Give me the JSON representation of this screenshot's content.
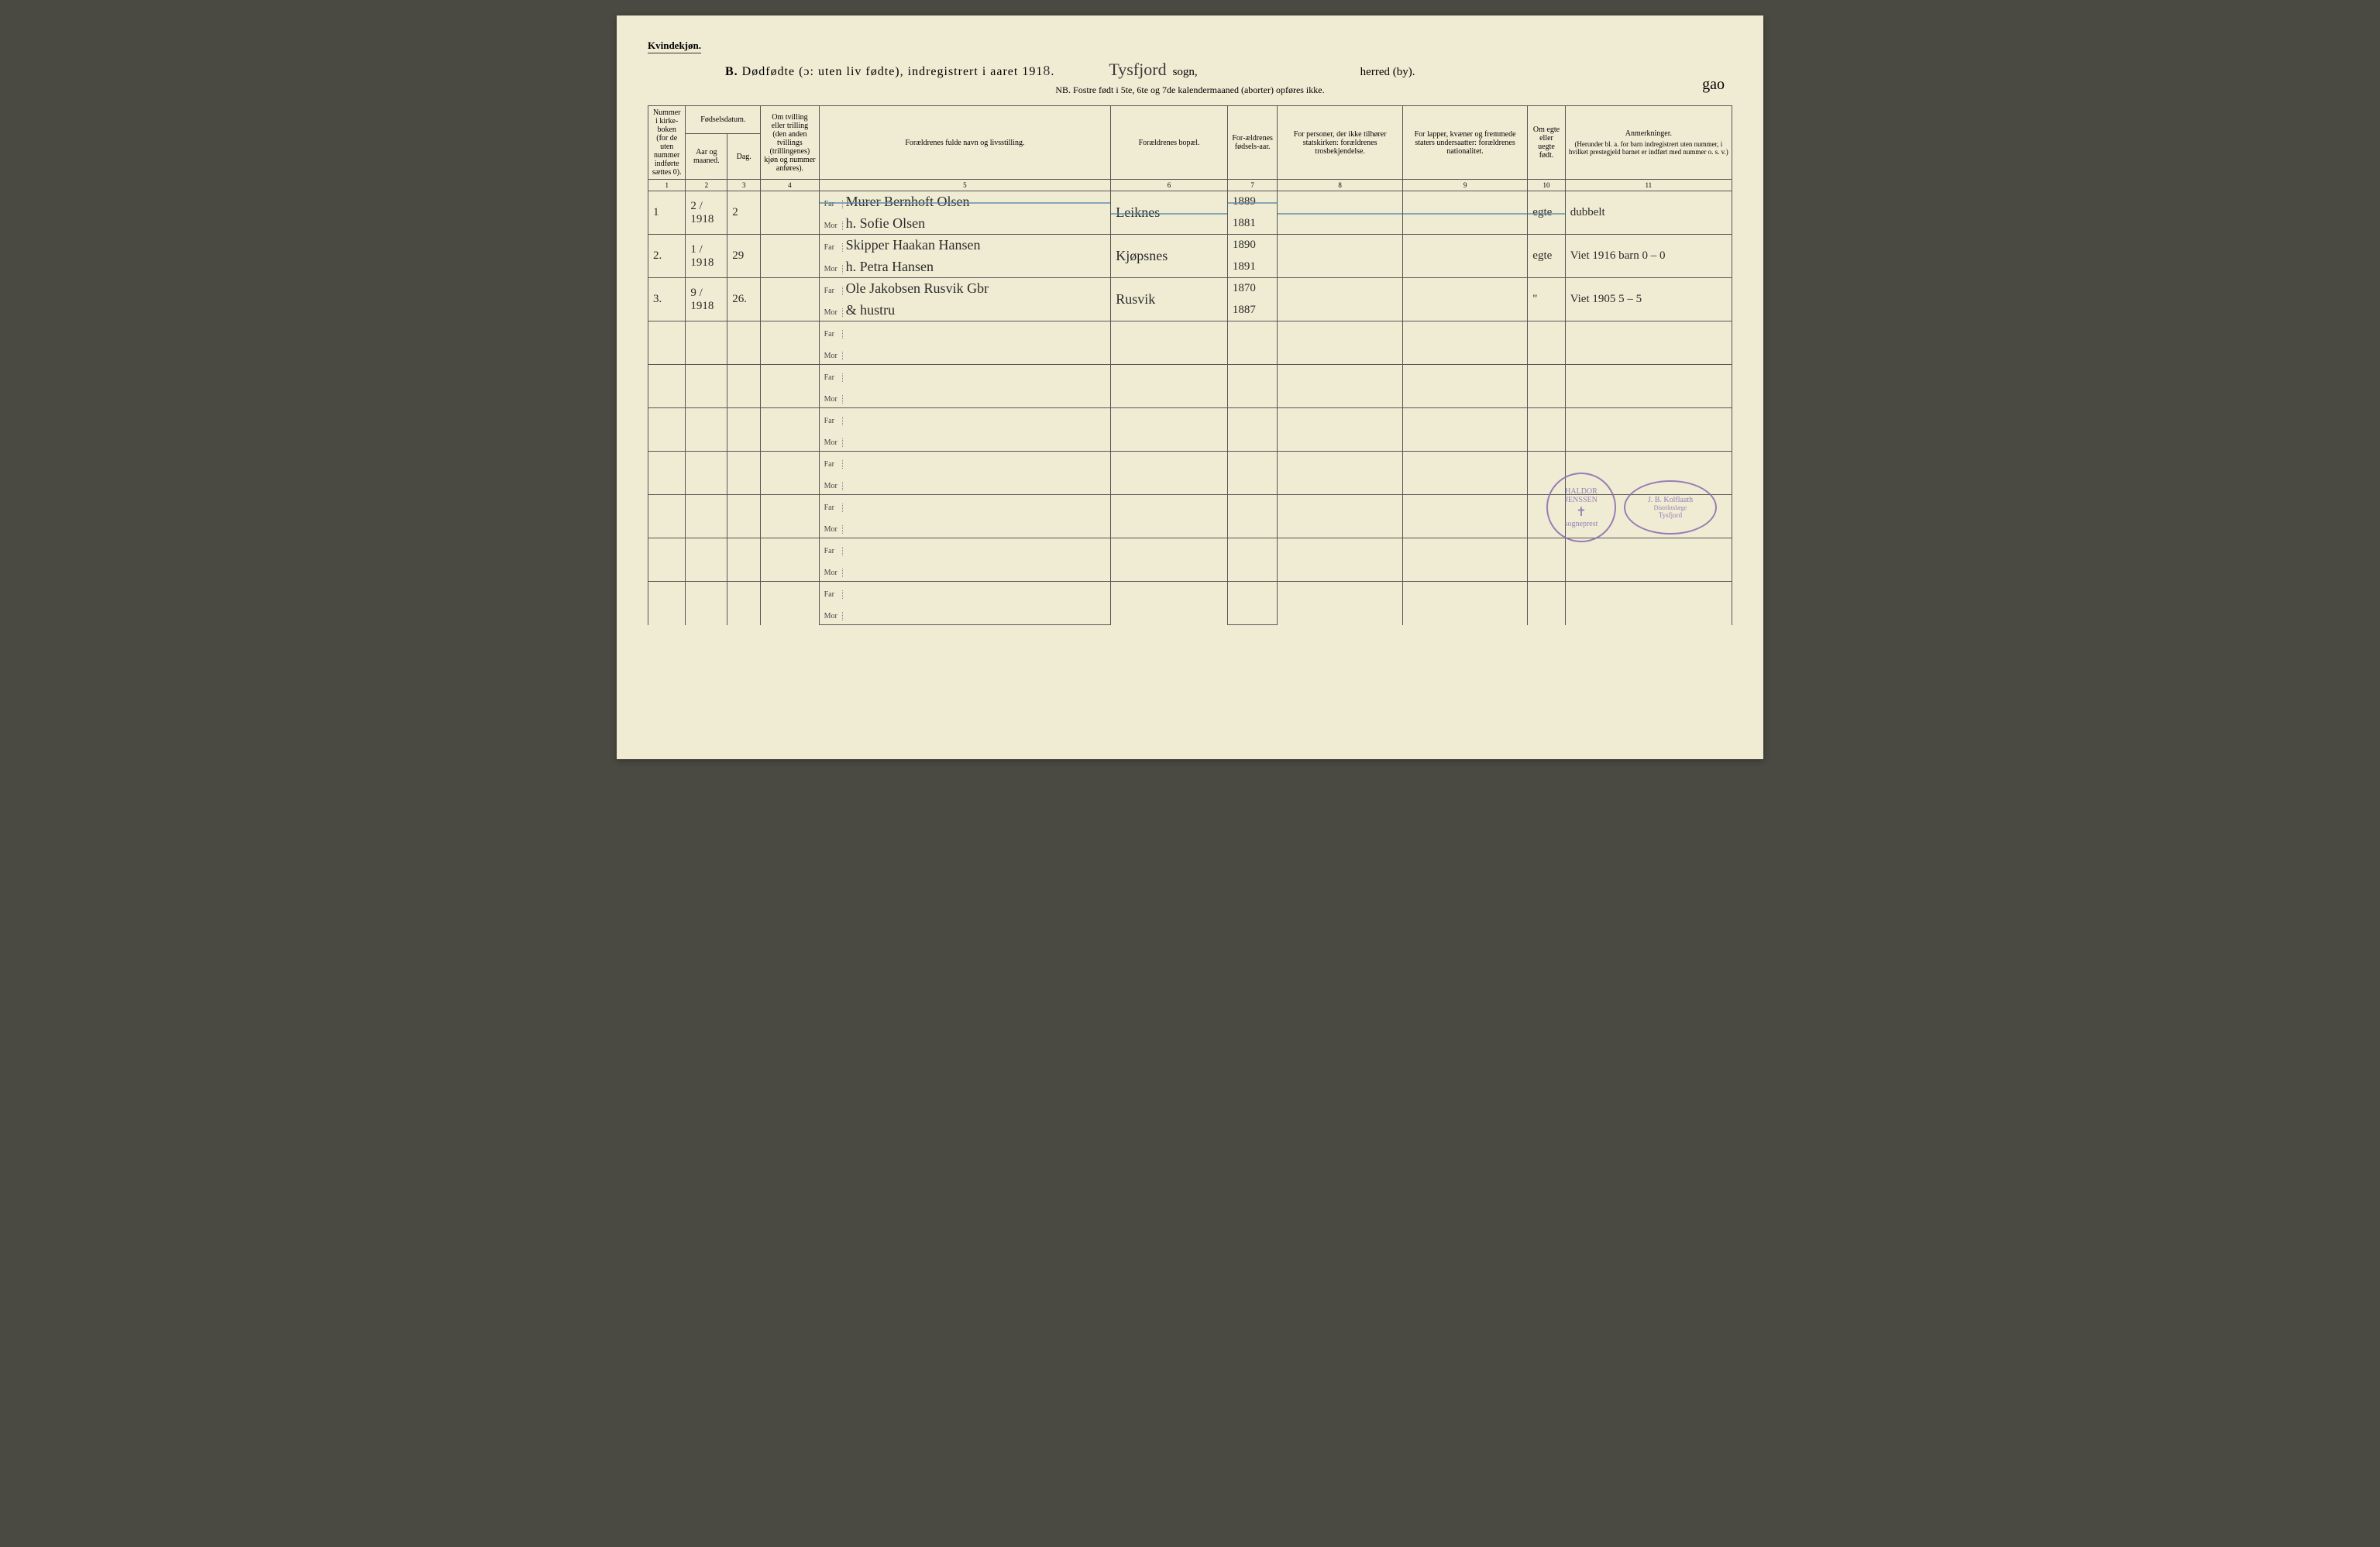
{
  "header": {
    "corner_label": "Kvindekjøn.",
    "title_prefix": "B.",
    "title_text": "Dødfødte (ɔ: uten liv fødte), indregistrert i aaret 191",
    "title_year_hw": "8",
    "title_period": ".",
    "sogn_hw": "Tysfjord",
    "sogn_label": "sogn,",
    "herred_label": "herred (by).",
    "subtitle": "NB. Fostre født i 5te, 6te og 7de kalendermaaned (aborter) opføres ikke.",
    "corner_hw": "gao"
  },
  "columns": {
    "c1": "Nummer i kirke-boken (for de uten nummer indførte sættes 0).",
    "c2_group": "Fødselsdatum.",
    "c2a": "Aar og maaned.",
    "c2b": "Dag.",
    "c3": "Om tvilling eller trilling (den anden tvillings (trillingenes) kjøn og nummer anføres).",
    "c4": "Forældrenes fulde navn og livsstilling.",
    "c5": "Forældrenes bopæl.",
    "c6": "For-ældrenes fødsels-aar.",
    "c7": "For personer, der ikke tilhører statskirken: forældrenes trosbekjendelse.",
    "c8": "For lapper, kvæner og fremmede staters undersaatter: forældrenes nationalitet.",
    "c9": "Om egte eller uegte født.",
    "c10_title": "Anmerkninger.",
    "c10_sub": "(Herunder bl. a. for barn indregistrert uten nummer, i hvilket prestegjeld barnet er indført med nummer o. s. v.)",
    "nums": [
      "1",
      "2",
      "3",
      "4",
      "5",
      "6",
      "7",
      "8",
      "9",
      "10",
      "11"
    ],
    "far": "Far",
    "mor": "Mor"
  },
  "entries": [
    {
      "num": "1",
      "aar": "2 / 1918",
      "dag": "2",
      "far_navn": "Murer Bernhoft Olsen",
      "mor_navn": "h. Sofie Olsen",
      "bopael": "Leiknes",
      "far_aar": "1889",
      "mor_aar": "1881",
      "egte": "egte",
      "anm": "dubbelt",
      "struck": true
    },
    {
      "num": "2.",
      "aar": "1 / 1918",
      "dag": "29",
      "far_navn": "Skipper Haakan Hansen",
      "mor_navn": "h. Petra Hansen",
      "bopael": "Kjøpsnes",
      "far_aar": "1890",
      "mor_aar": "1891",
      "egte": "egte",
      "anm": "Viet 1916   barn 0 – 0",
      "struck": false
    },
    {
      "num": "3.",
      "aar": "9 / 1918",
      "dag": "26.",
      "far_navn": "Ole Jakobsen Rusvik    Gbr",
      "mor_navn": "& hustru",
      "bopael": "Rusvik",
      "far_aar": "1870",
      "mor_aar": "1887",
      "egte": "\"",
      "anm": "Viet 1905   5 – 5",
      "struck": false
    }
  ],
  "stamps": {
    "round_top": "HALDOR JENSSEN",
    "round_mid": "✝",
    "round_bot": "sogneprest",
    "oval_top": "J. B. Kolflaath",
    "oval_mid": "Distriktslæge",
    "oval_bot": "Tysfjord"
  },
  "colors": {
    "paper": "#f0ecd4",
    "ink": "#2a2a2a",
    "rule": "#555555",
    "strike": "#5a8aa8",
    "stamp": "#8a6ab0"
  }
}
